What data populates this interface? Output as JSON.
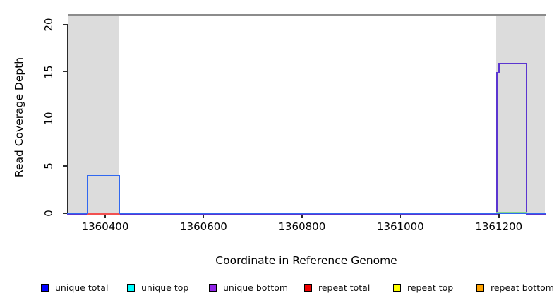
{
  "chart_data": {
    "type": "line",
    "title": "",
    "xlabel": "Coordinate in Reference Genome",
    "ylabel": "Read Coverage Depth",
    "xlim": [
      1360324,
      1361295
    ],
    "ylim": [
      0,
      21.1
    ],
    "x_ticks": [
      1360400,
      1360600,
      1360800,
      1361000,
      1361200
    ],
    "y_ticks": [
      0,
      5,
      10,
      15,
      20
    ],
    "grid": false,
    "legend_position": "bottom",
    "colors": {
      "background": "#ffffff",
      "shaded_region": "#dcdcdc",
      "top_border": "#8c8c8c",
      "axis": "#2a2a2a"
    },
    "shaded_regions": [
      {
        "x0": 1360326,
        "x1": 1360429
      },
      {
        "x0": 1361195,
        "x1": 1361294
      }
    ],
    "top_border_value": 21.1,
    "series": [
      {
        "name": "unique total",
        "color": "#0000ff",
        "line_color": "#3068f0",
        "points": [
          [
            1360324,
            0
          ],
          [
            1360364,
            0
          ],
          [
            1360364,
            4
          ],
          [
            1360429,
            4
          ],
          [
            1360429,
            0
          ],
          [
            1361295,
            0
          ]
        ]
      },
      {
        "name": "unique top",
        "color": "#00ffff",
        "line_color": "#86d78b",
        "points": [
          [
            1361196,
            0
          ],
          [
            1361256,
            0
          ]
        ]
      },
      {
        "name": "unique bottom",
        "color": "#9125e8",
        "line_color": "#5b35d0",
        "points": [
          [
            1360324,
            0
          ],
          [
            1361196,
            0
          ],
          [
            1361196,
            15
          ],
          [
            1361200,
            15
          ],
          [
            1361200,
            16
          ],
          [
            1361256,
            16
          ],
          [
            1361256,
            0
          ],
          [
            1361295,
            0
          ]
        ]
      },
      {
        "name": "repeat total",
        "color": "#f00000",
        "line_color": "#f25050",
        "points": [
          [
            1360364,
            0
          ],
          [
            1360429,
            0
          ]
        ]
      },
      {
        "name": "repeat top",
        "color": "#ffff00",
        "line_color": "#ffff00",
        "points": []
      },
      {
        "name": "repeat bottom",
        "color": "#ffa200",
        "line_color": "#ffa200",
        "points": []
      }
    ]
  }
}
